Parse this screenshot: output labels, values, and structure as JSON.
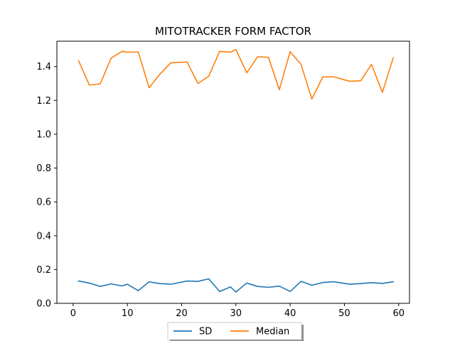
{
  "chart_data": {
    "type": "line",
    "title": "MITOTRACKER FORM FACTOR",
    "xlabel": "",
    "ylabel": "",
    "xlim": [
      -3,
      62
    ],
    "ylim": [
      0.0,
      1.55
    ],
    "xticks": [
      0,
      10,
      20,
      30,
      40,
      50,
      60
    ],
    "yticks": [
      0.0,
      0.2,
      0.4,
      0.6,
      0.8,
      1.0,
      1.2,
      1.4
    ],
    "ytick_labels": [
      "0.0",
      "0.2",
      "0.4",
      "0.6",
      "0.8",
      "1.0",
      "1.2",
      "1.4"
    ],
    "grid": false,
    "legend_position": "bottom-center",
    "x": [
      1,
      3,
      5,
      7,
      9,
      10,
      12,
      14,
      16,
      18,
      21,
      23,
      25,
      27,
      29,
      30,
      32,
      34,
      36,
      38,
      40,
      42,
      44,
      46,
      48,
      51,
      53,
      55,
      57,
      59
    ],
    "series": [
      {
        "name": "SD",
        "color": "#1f77b4",
        "values": [
          0.132,
          0.12,
          0.1,
          0.115,
          0.103,
          0.113,
          0.075,
          0.127,
          0.117,
          0.113,
          0.132,
          0.13,
          0.145,
          0.07,
          0.097,
          0.067,
          0.12,
          0.1,
          0.095,
          0.102,
          0.07,
          0.13,
          0.107,
          0.123,
          0.128,
          0.113,
          0.117,
          0.122,
          0.118,
          0.128
        ]
      },
      {
        "name": "Median",
        "color": "#ff7f0e",
        "values": [
          1.435,
          1.29,
          1.298,
          1.45,
          1.49,
          1.485,
          1.486,
          1.275,
          1.355,
          1.422,
          1.427,
          1.3,
          1.343,
          1.49,
          1.485,
          1.5,
          1.363,
          1.458,
          1.455,
          1.263,
          1.488,
          1.413,
          1.208,
          1.338,
          1.34,
          1.313,
          1.316,
          1.413,
          1.247,
          1.452
        ]
      }
    ]
  }
}
